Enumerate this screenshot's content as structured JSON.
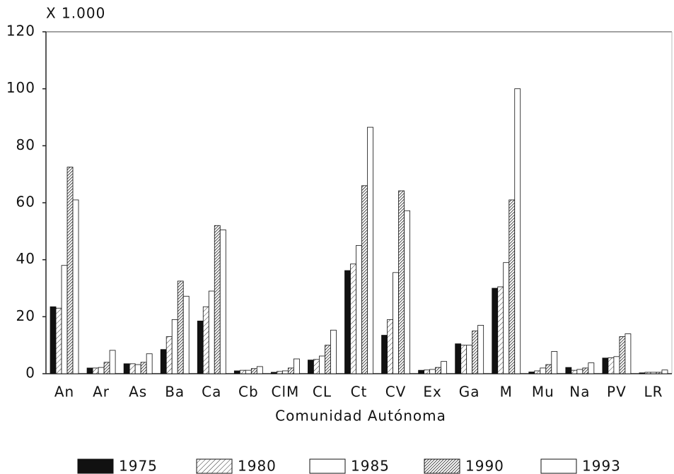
{
  "chart_data": {
    "type": "bar",
    "annotation": "X 1.000",
    "x_label": "Comunidad Autónoma",
    "categories": [
      "An",
      "Ar",
      "As",
      "Ba",
      "Ca",
      "Cb",
      "ClM",
      "CL",
      "Ct",
      "CV",
      "Ex",
      "Ga",
      "M",
      "Mu",
      "Na",
      "PV",
      "LR"
    ],
    "series": [
      {
        "name": "1975",
        "color": "#111111",
        "pattern": "solid",
        "values": [
          23.5,
          2,
          3.5,
          8.5,
          18.5,
          1,
          0.5,
          4.8,
          36.2,
          13.5,
          1.2,
          10.5,
          30,
          0.6,
          2.2,
          5.5,
          0.3
        ]
      },
      {
        "name": "1980",
        "color": "#111111",
        "pattern": "light-hatch",
        "values": [
          23,
          2,
          3.5,
          13,
          23.5,
          1.2,
          0.8,
          5,
          38.5,
          19,
          1.3,
          10,
          30.5,
          1,
          1.2,
          5.6,
          0.5
        ]
      },
      {
        "name": "1985",
        "color": "#111111",
        "pattern": "none",
        "values": [
          38,
          2.2,
          3.2,
          19,
          29,
          1.2,
          1,
          6.2,
          45,
          35.5,
          1.5,
          10,
          39,
          2,
          1.5,
          6,
          0.5
        ]
      },
      {
        "name": "1990",
        "color": "#111111",
        "pattern": "dense-hatch",
        "values": [
          72.5,
          4,
          4,
          32.5,
          52,
          1.8,
          2,
          10,
          66,
          64.2,
          2.2,
          15,
          61,
          3.2,
          2,
          13,
          0.5
        ]
      },
      {
        "name": "1993",
        "color": "#111111",
        "pattern": "none",
        "values": [
          61,
          8.2,
          7,
          27.2,
          50.5,
          2.5,
          5.2,
          15.3,
          86.5,
          57.2,
          4.3,
          17,
          100,
          7.8,
          3.8,
          14,
          1.3
        ]
      }
    ],
    "ylim": [
      0,
      120
    ],
    "yticks": [
      0,
      20,
      40,
      60,
      80,
      100,
      120
    ]
  }
}
